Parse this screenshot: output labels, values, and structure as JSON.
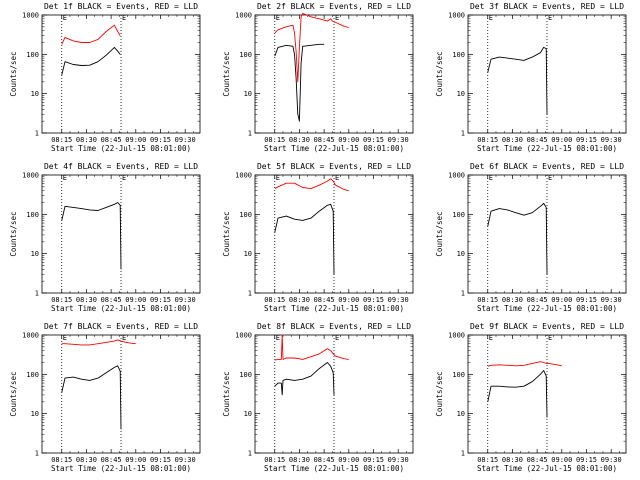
{
  "x_tick_labels": [
    "08:15",
    "08:30",
    "08:45",
    "09:00",
    "09:15",
    "09:30"
  ],
  "y_tick_labels": [
    "1",
    "10",
    "100",
    "1000"
  ],
  "xlabel": "Start Time (22-Jul-15 08:01:00)",
  "ylabel": "Counts/sec",
  "marker": "E",
  "colors": {
    "events": "#000000",
    "lld": "#ff0000"
  },
  "chart_data": [
    {
      "type": "line",
      "title": "Det 1f BLACK = Events, RED = LLD",
      "x_range_min": [
        0,
        48
      ],
      "ylim": [
        1,
        1000
      ],
      "y_scale": "log",
      "markers_min": [
        3,
        39
      ],
      "series": [
        {
          "color": "events",
          "x_min": [
            3,
            5,
            10,
            15,
            20,
            25,
            30,
            35,
            37,
            38.5
          ],
          "values": [
            30,
            65,
            55,
            52,
            53,
            65,
            95,
            150,
            120,
            100
          ]
        },
        {
          "color": "lld",
          "x_min": [
            3,
            5,
            10,
            15,
            20,
            25,
            30,
            35,
            37,
            38.5
          ],
          "values": [
            180,
            270,
            220,
            200,
            200,
            240,
            380,
            550,
            380,
            300
          ]
        }
      ]
    },
    {
      "type": "line",
      "title": "Det 2f BLACK = Events, RED = LLD",
      "x_range_min": [
        0,
        48
      ],
      "ylim": [
        1,
        1000
      ],
      "y_scale": "log",
      "markers_min": [
        3,
        39
      ],
      "series": [
        {
          "color": "events",
          "x_min": [
            3,
            5,
            10,
            14,
            15,
            16,
            17,
            18,
            19,
            20,
            25,
            30,
            33
          ],
          "values": [
            90,
            150,
            170,
            160,
            100,
            25,
            3,
            2,
            60,
            160,
            170,
            180,
            180
          ]
        },
        {
          "color": "lld",
          "x_min": [
            3,
            5,
            10,
            14,
            15,
            16,
            17,
            18,
            19,
            20,
            25,
            30,
            35,
            37,
            38,
            40,
            45,
            48
          ],
          "values": [
            350,
            420,
            500,
            550,
            350,
            120,
            20,
            150,
            900,
            1100,
            900,
            800,
            700,
            800,
            700,
            650,
            520,
            480
          ]
        }
      ]
    },
    {
      "type": "line",
      "title": "Det 3f BLACK = Events, RED = LLD",
      "x_range_min": [
        0,
        48
      ],
      "ylim": [
        1,
        1000
      ],
      "y_scale": "log",
      "markers_min": [
        3,
        39
      ],
      "series": [
        {
          "color": "events",
          "x_min": [
            3,
            5,
            10,
            15,
            20,
            25,
            30,
            35,
            37,
            38.5,
            39
          ],
          "values": [
            35,
            75,
            85,
            80,
            75,
            70,
            85,
            110,
            150,
            140,
            3
          ]
        }
      ]
    },
    {
      "type": "line",
      "title": "Det 4f BLACK = Events, RED = LLD",
      "x_range_min": [
        0,
        48
      ],
      "ylim": [
        1,
        1000
      ],
      "y_scale": "log",
      "markers_min": [
        3,
        39
      ],
      "series": [
        {
          "color": "events",
          "x_min": [
            3,
            5,
            10,
            15,
            20,
            25,
            30,
            35,
            37,
            38.5,
            39
          ],
          "values": [
            70,
            160,
            150,
            140,
            130,
            125,
            150,
            180,
            200,
            170,
            4
          ]
        }
      ]
    },
    {
      "type": "line",
      "title": "Det 5f BLACK = Events, RED = LLD",
      "x_range_min": [
        0,
        48
      ],
      "ylim": [
        1,
        1000
      ],
      "y_scale": "log",
      "markers_min": [
        3,
        39
      ],
      "series": [
        {
          "color": "events",
          "x_min": [
            3,
            5,
            10,
            15,
            20,
            25,
            30,
            35,
            37,
            38.5,
            39
          ],
          "values": [
            35,
            80,
            90,
            75,
            70,
            80,
            120,
            170,
            180,
            120,
            3
          ]
        },
        {
          "color": "lld",
          "x_min": [
            3,
            5,
            10,
            15,
            20,
            25,
            30,
            35,
            37,
            38.5,
            40,
            45,
            48
          ],
          "values": [
            450,
            500,
            620,
            620,
            480,
            450,
            550,
            700,
            800,
            700,
            550,
            430,
            400
          ]
        }
      ]
    },
    {
      "type": "line",
      "title": "Det 6f BLACK = Events, RED = LLD",
      "x_range_min": [
        0,
        48
      ],
      "ylim": [
        1,
        1000
      ],
      "y_scale": "log",
      "markers_min": [
        3,
        39
      ],
      "series": [
        {
          "color": "events",
          "x_min": [
            3,
            5,
            10,
            15,
            20,
            25,
            30,
            35,
            37,
            38.5,
            39
          ],
          "values": [
            50,
            120,
            140,
            130,
            110,
            95,
            110,
            160,
            190,
            150,
            3
          ]
        }
      ]
    },
    {
      "type": "line",
      "title": "Det 7f BLACK = Events, RED = LLD",
      "x_range_min": [
        0,
        48
      ],
      "ylim": [
        1,
        1000
      ],
      "y_scale": "log",
      "markers_min": [
        3,
        39
      ],
      "series": [
        {
          "color": "events",
          "x_min": [
            3,
            5,
            10,
            15,
            20,
            25,
            30,
            35,
            37,
            38.5,
            39
          ],
          "values": [
            35,
            80,
            85,
            75,
            70,
            80,
            110,
            150,
            165,
            120,
            4
          ]
        },
        {
          "color": "lld",
          "x_min": [
            3,
            5,
            10,
            15,
            20,
            25,
            30,
            35,
            37,
            40,
            45,
            48
          ],
          "values": [
            600,
            600,
            580,
            560,
            560,
            600,
            650,
            700,
            750,
            680,
            620,
            600
          ]
        }
      ]
    },
    {
      "type": "line",
      "title": "Det 8f BLACK = Events, RED = LLD",
      "x_range_min": [
        0,
        48
      ],
      "ylim": [
        1,
        1000
      ],
      "y_scale": "log",
      "markers_min": [
        3,
        39
      ],
      "series": [
        {
          "color": "events",
          "x_min": [
            3,
            5,
            7,
            7.5,
            8,
            10,
            15,
            20,
            25,
            30,
            35,
            37,
            38.5,
            39
          ],
          "values": [
            50,
            60,
            60,
            30,
            70,
            75,
            70,
            75,
            90,
            140,
            200,
            160,
            110,
            30
          ]
        },
        {
          "color": "lld",
          "x_min": [
            3,
            5,
            7,
            7.5,
            8,
            10,
            15,
            20,
            25,
            30,
            35,
            37,
            38.5,
            40,
            45,
            48
          ],
          "values": [
            230,
            240,
            240,
            1000,
            240,
            260,
            260,
            240,
            280,
            330,
            450,
            400,
            330,
            290,
            250,
            240
          ]
        }
      ]
    },
    {
      "type": "line",
      "title": "Det 9f BLACK = Events, RED = LLD",
      "x_range_min": [
        0,
        48
      ],
      "ylim": [
        1,
        1000
      ],
      "y_scale": "log",
      "markers_min": [
        3,
        39
      ],
      "series": [
        {
          "color": "events",
          "x_min": [
            3,
            5,
            10,
            15,
            20,
            25,
            30,
            35,
            37,
            38.5,
            39
          ],
          "values": [
            20,
            50,
            50,
            48,
            47,
            50,
            65,
            100,
            125,
            90,
            8
          ]
        },
        {
          "color": "lld",
          "x_min": [
            3,
            5,
            10,
            15,
            20,
            25,
            30,
            35,
            37,
            38.5,
            40,
            45,
            48
          ],
          "values": [
            160,
            170,
            175,
            170,
            165,
            170,
            190,
            210,
            200,
            190,
            190,
            175,
            165
          ]
        }
      ]
    }
  ]
}
